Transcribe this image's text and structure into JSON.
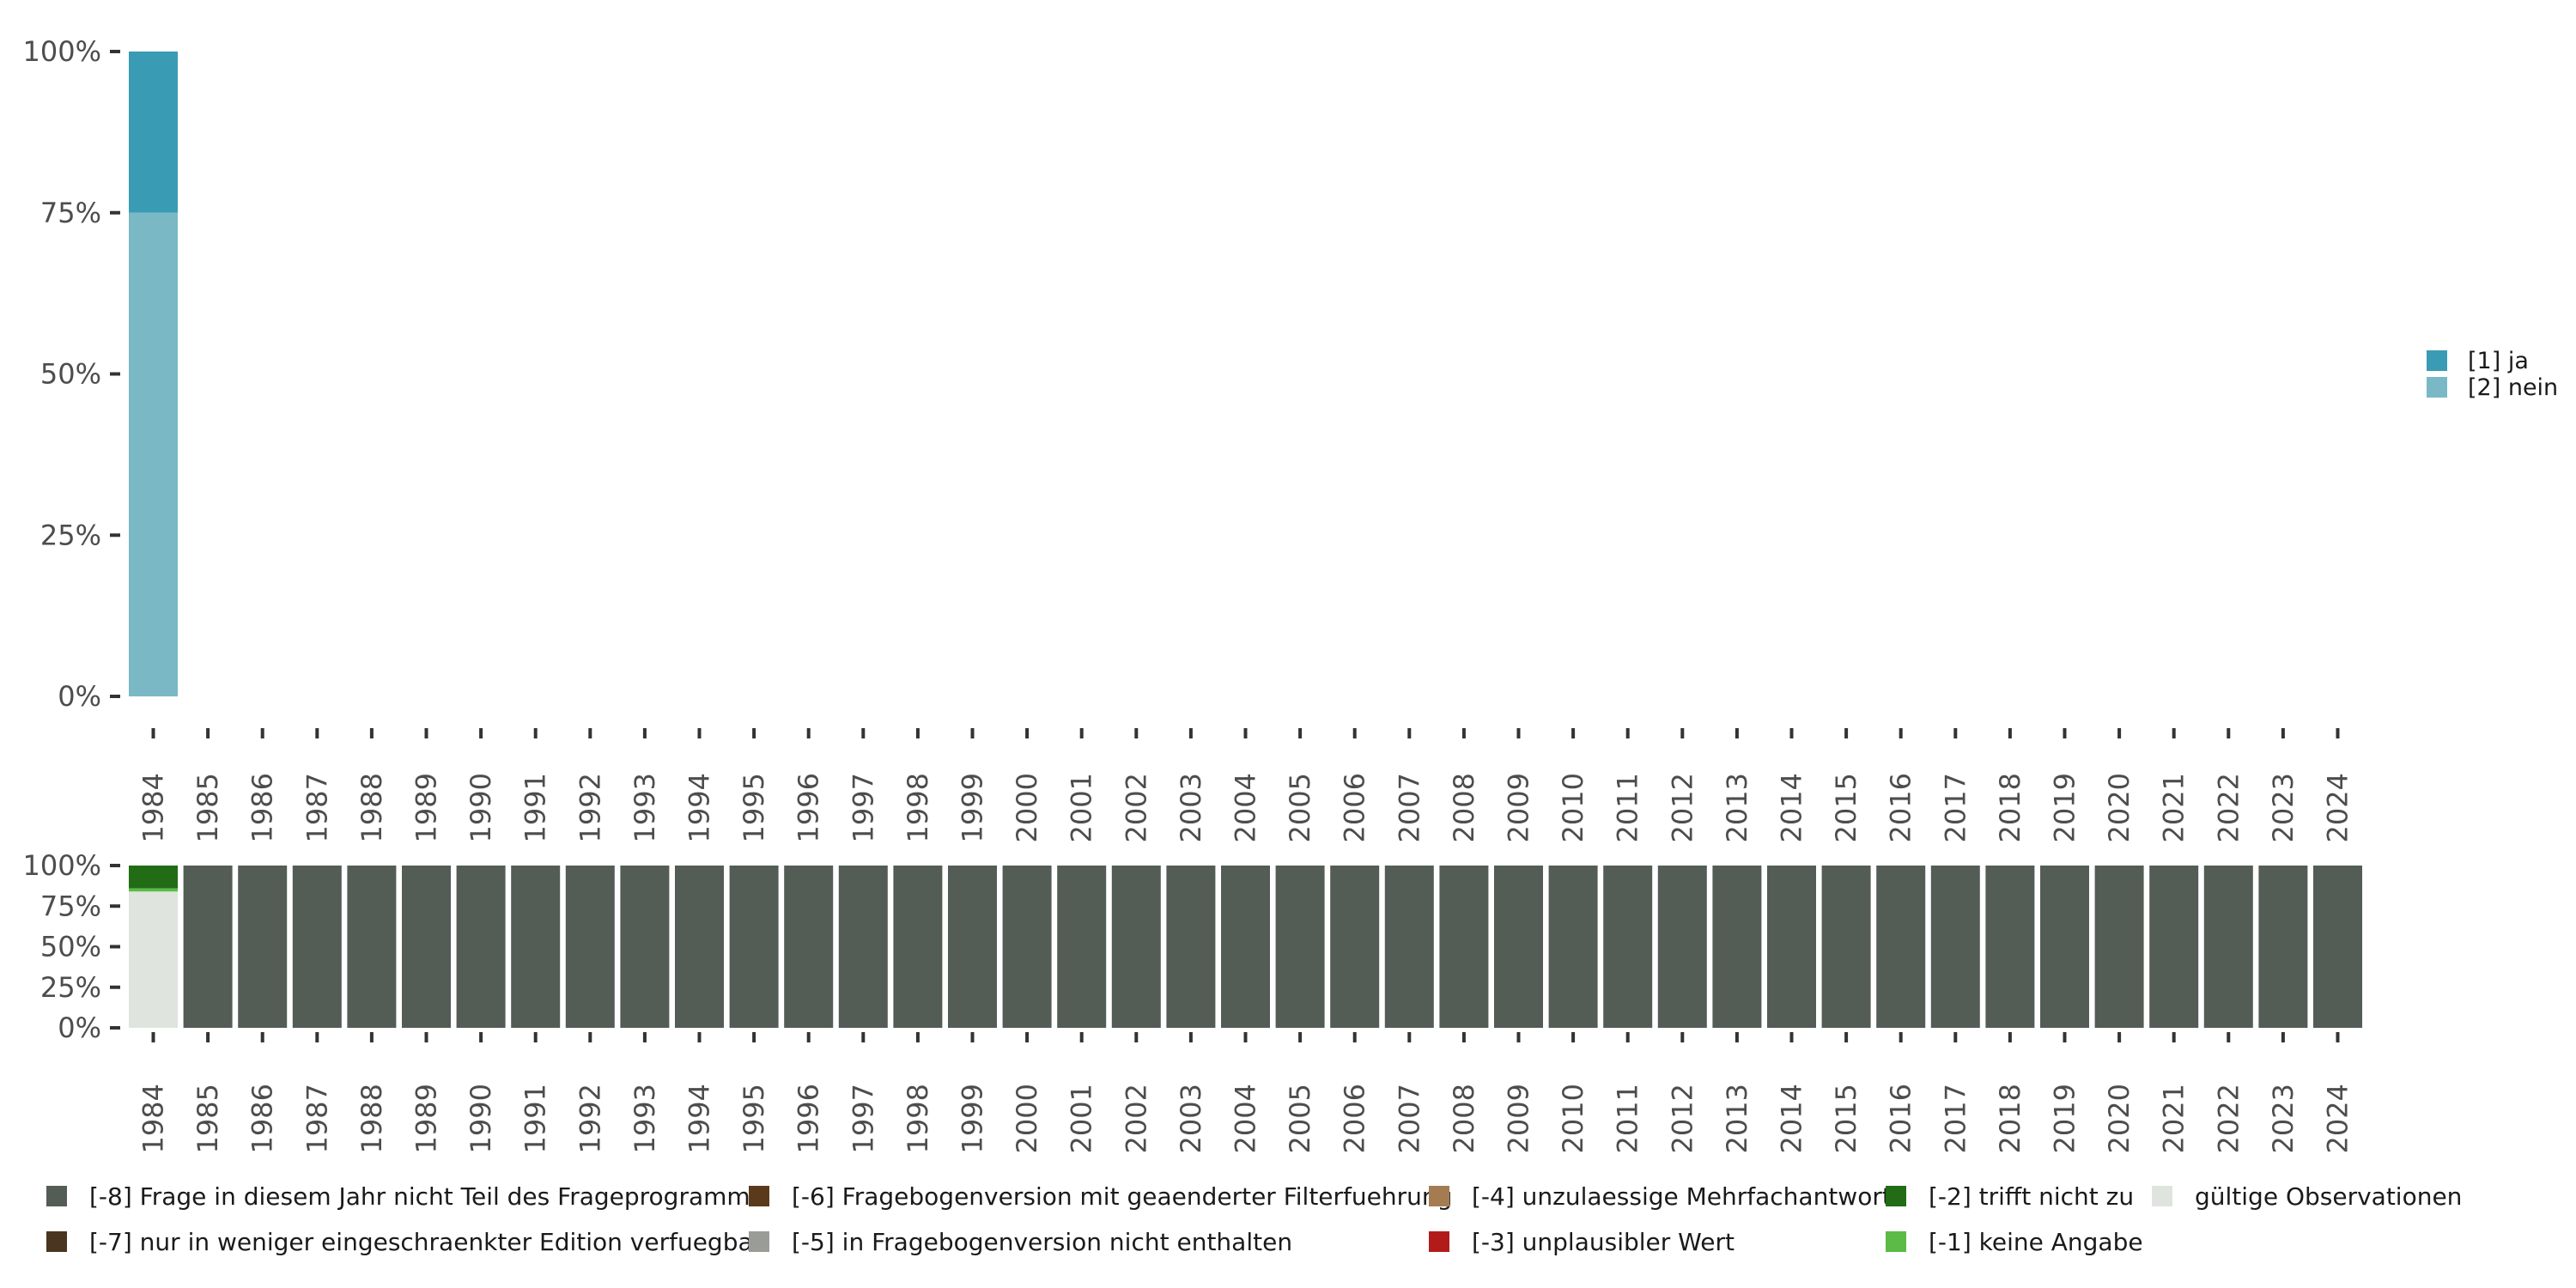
{
  "chart_data": [
    {
      "type": "bar",
      "stacked": true,
      "title": "",
      "xlabel": "",
      "ylabel": "",
      "ylim": [
        0,
        100
      ],
      "yticks": [
        "0%",
        "25%",
        "50%",
        "75%",
        "100%"
      ],
      "categories": [
        "1984",
        "1985",
        "1986",
        "1987",
        "1988",
        "1989",
        "1990",
        "1991",
        "1992",
        "1993",
        "1994",
        "1995",
        "1996",
        "1997",
        "1998",
        "1999",
        "2000",
        "2001",
        "2002",
        "2003",
        "2004",
        "2005",
        "2006",
        "2007",
        "2008",
        "2009",
        "2010",
        "2011",
        "2012",
        "2013",
        "2014",
        "2015",
        "2016",
        "2017",
        "2018",
        "2019",
        "2020",
        "2021",
        "2022",
        "2023",
        "2024"
      ],
      "series": [
        {
          "name": "[2] nein",
          "color": "#7ab8c6",
          "values": [
            75,
            0,
            0,
            0,
            0,
            0,
            0,
            0,
            0,
            0,
            0,
            0,
            0,
            0,
            0,
            0,
            0,
            0,
            0,
            0,
            0,
            0,
            0,
            0,
            0,
            0,
            0,
            0,
            0,
            0,
            0,
            0,
            0,
            0,
            0,
            0,
            0,
            0,
            0,
            0,
            0
          ]
        },
        {
          "name": "[1] ja",
          "color": "#3a9bb4",
          "values": [
            25,
            0,
            0,
            0,
            0,
            0,
            0,
            0,
            0,
            0,
            0,
            0,
            0,
            0,
            0,
            0,
            0,
            0,
            0,
            0,
            0,
            0,
            0,
            0,
            0,
            0,
            0,
            0,
            0,
            0,
            0,
            0,
            0,
            0,
            0,
            0,
            0,
            0,
            0,
            0,
            0
          ]
        }
      ],
      "legend": {
        "position": "right",
        "items": [
          {
            "label": "[1] ja",
            "color": "#3a9bb4"
          },
          {
            "label": "[2] nein",
            "color": "#7ab8c6"
          }
        ]
      }
    },
    {
      "type": "bar",
      "stacked": true,
      "title": "",
      "xlabel": "",
      "ylabel": "",
      "ylim": [
        0,
        100
      ],
      "yticks": [
        "0%",
        "25%",
        "50%",
        "75%",
        "100%"
      ],
      "categories": [
        "1984",
        "1985",
        "1986",
        "1987",
        "1988",
        "1989",
        "1990",
        "1991",
        "1992",
        "1993",
        "1994",
        "1995",
        "1996",
        "1997",
        "1998",
        "1999",
        "2000",
        "2001",
        "2002",
        "2003",
        "2004",
        "2005",
        "2006",
        "2007",
        "2008",
        "2009",
        "2010",
        "2011",
        "2012",
        "2013",
        "2014",
        "2015",
        "2016",
        "2017",
        "2018",
        "2019",
        "2020",
        "2021",
        "2022",
        "2023",
        "2024"
      ],
      "series": [
        {
          "name": "gültige Observationen",
          "color": "#dfe4df",
          "values": [
            84,
            0,
            0,
            0,
            0,
            0,
            0,
            0,
            0,
            0,
            0,
            0,
            0,
            0,
            0,
            0,
            0,
            0,
            0,
            0,
            0,
            0,
            0,
            0,
            0,
            0,
            0,
            0,
            0,
            0,
            0,
            0,
            0,
            0,
            0,
            0,
            0,
            0,
            0,
            0,
            0
          ]
        },
        {
          "name": "[-1] keine Angabe",
          "color": "#5cba47",
          "values": [
            2,
            0,
            0,
            0,
            0,
            0,
            0,
            0,
            0,
            0,
            0,
            0,
            0,
            0,
            0,
            0,
            0,
            0,
            0,
            0,
            0,
            0,
            0,
            0,
            0,
            0,
            0,
            0,
            0,
            0,
            0,
            0,
            0,
            0,
            0,
            0,
            0,
            0,
            0,
            0,
            0
          ]
        },
        {
          "name": "[-2] trifft nicht zu",
          "color": "#226c16",
          "values": [
            14,
            0,
            0,
            0,
            0,
            0,
            0,
            0,
            0,
            0,
            0,
            0,
            0,
            0,
            0,
            0,
            0,
            0,
            0,
            0,
            0,
            0,
            0,
            0,
            0,
            0,
            0,
            0,
            0,
            0,
            0,
            0,
            0,
            0,
            0,
            0,
            0,
            0,
            0,
            0,
            0
          ]
        },
        {
          "name": "[-8] Frage in diesem Jahr nicht Teil des Frageprogramms",
          "color": "#545c56",
          "values": [
            0,
            100,
            100,
            100,
            100,
            100,
            100,
            100,
            100,
            100,
            100,
            100,
            100,
            100,
            100,
            100,
            100,
            100,
            100,
            100,
            100,
            100,
            100,
            100,
            100,
            100,
            100,
            100,
            100,
            100,
            100,
            100,
            100,
            100,
            100,
            100,
            100,
            100,
            100,
            100,
            100
          ]
        }
      ],
      "legend": {
        "position": "bottom",
        "items": [
          {
            "label": "[-8] Frage in diesem Jahr nicht Teil des Frageprogramms",
            "color": "#545c56"
          },
          {
            "label": "[-7] nur in weniger eingeschraenkter Edition verfuegbar",
            "color": "#4a3520"
          },
          {
            "label": "[-6] Fragebogenversion mit geaenderter Filterfuehrung",
            "color": "#5b3a1c"
          },
          {
            "label": "[-5] in Fragebogenversion nicht enthalten",
            "color": "#9a9c98"
          },
          {
            "label": "[-4] unzulaessige Mehrfachantwort",
            "color": "#a57c52"
          },
          {
            "label": "[-3] unplausibler Wert",
            "color": "#b31b1b"
          },
          {
            "label": "[-2] trifft nicht zu",
            "color": "#226c16"
          },
          {
            "label": "[-1] keine Angabe",
            "color": "#5cba47"
          },
          {
            "label": "gültige Observationen",
            "color": "#dfe4df"
          }
        ]
      }
    }
  ]
}
